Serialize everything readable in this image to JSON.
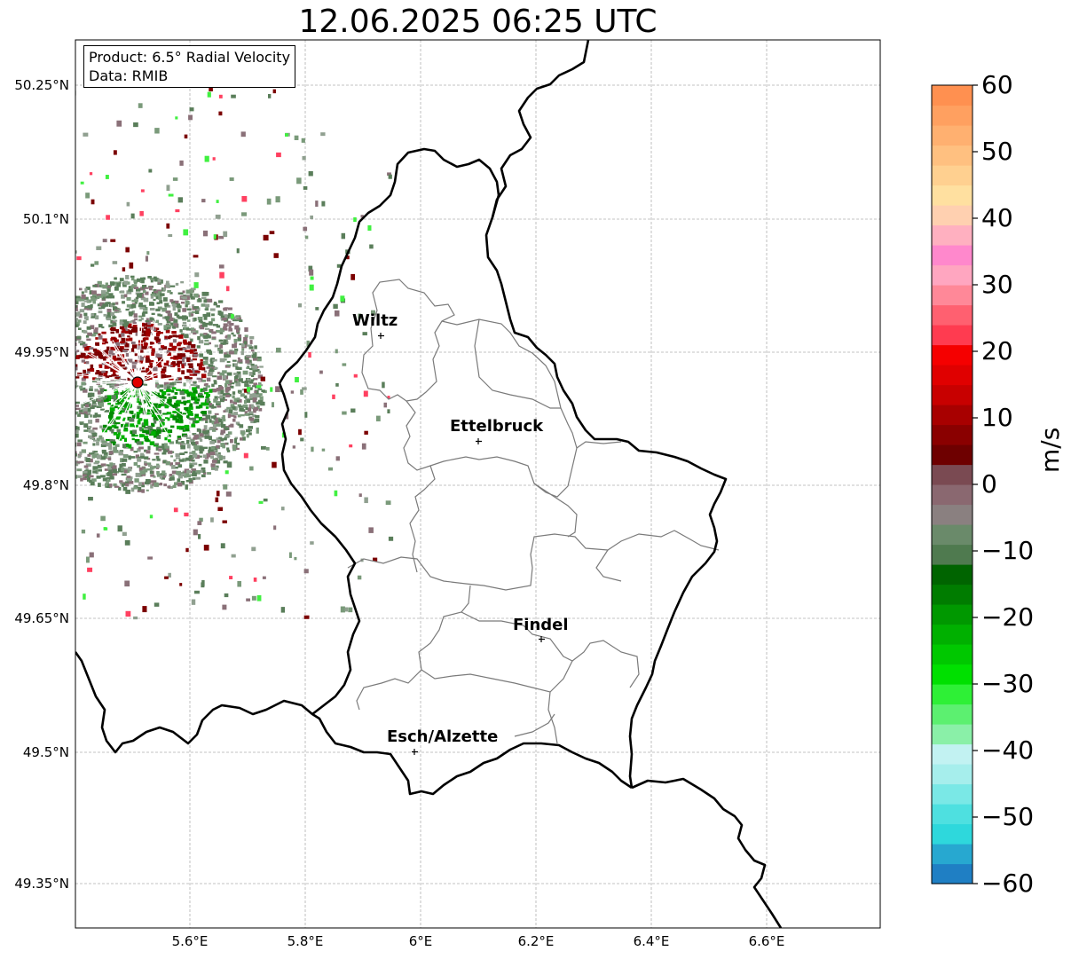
{
  "title": "12.06.2025 06:25 UTC",
  "info_box": {
    "product": "Product: 6.5° Radial Velocity",
    "data": "Data: RMIB"
  },
  "lat_labels": [
    "50.25°N",
    "50.1°N",
    "49.95°N",
    "49.8°N",
    "49.65°N",
    "49.5°N",
    "49.35°N"
  ],
  "lon_labels": [
    "5.6°E",
    "5.8°E",
    "6°E",
    "6.2°E",
    "6.4°E",
    "6.6°E"
  ],
  "cities": [
    {
      "name": "Wiltz"
    },
    {
      "name": "Ettelbruck"
    },
    {
      "name": "Findel"
    },
    {
      "name": "Esch/Alzette"
    }
  ],
  "colorbar": {
    "label": "m/s",
    "ticks": [
      "60",
      "50",
      "40",
      "30",
      "20",
      "10",
      "0",
      "−10",
      "−20",
      "−30",
      "−40",
      "−50",
      "−60"
    ],
    "range": [
      -60,
      60
    ],
    "colors_low_to_high": [
      "#1f7fc4",
      "#27a8d0",
      "#2ed8dc",
      "#4ee0e0",
      "#7ae8e6",
      "#a6eeec",
      "#c2f2f2",
      "#8af0a8",
      "#5cf070",
      "#2ef036",
      "#00e000",
      "#00c800",
      "#00b000",
      "#009800",
      "#007c00",
      "#006400",
      "#4f7a4f",
      "#6a8a6a",
      "#8a8080",
      "#8a6870",
      "#7a4a52",
      "#6e0000",
      "#8a0000",
      "#a80000",
      "#c80000",
      "#e00000",
      "#f50000",
      "#ff3b50",
      "#ff6070",
      "#ff8898",
      "#ffa6c0",
      "#ff88cc",
      "#ffb0c0",
      "#ffd0b0",
      "#ffe0a0",
      "#ffd090",
      "#ffc080",
      "#ffb070",
      "#ffa060",
      "#ff9050"
    ]
  },
  "radar": {
    "velocity_colors": [
      "#7b0000",
      "#a00000",
      "#008a00",
      "#00b000",
      "#5a7e5a",
      "#7a9a7a",
      "#8a7078",
      "#90a090",
      "#ff4060",
      "#40f040"
    ]
  }
}
